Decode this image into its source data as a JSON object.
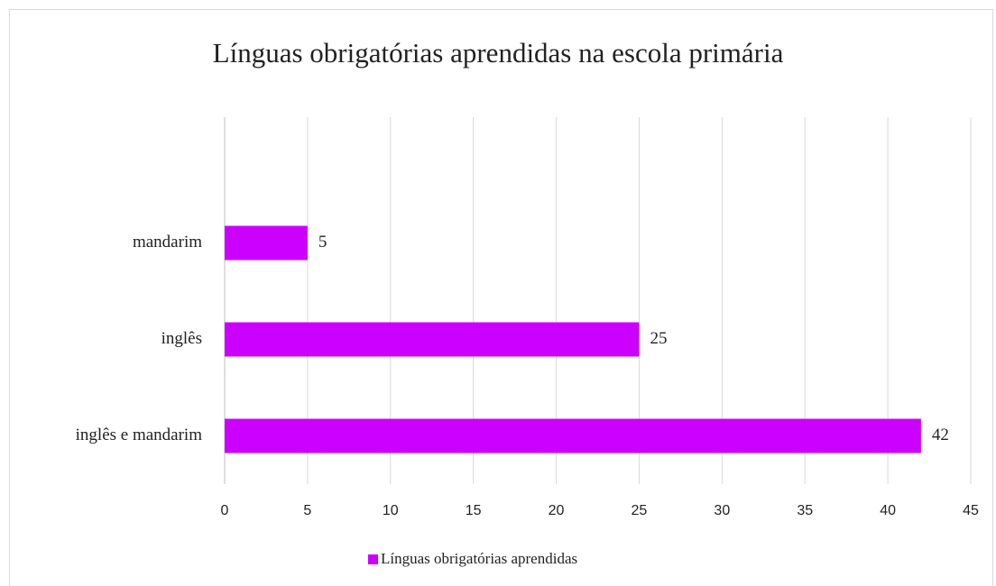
{
  "chart_data": {
    "type": "barh",
    "title": "Línguas obrigatórias aprendidas na escola primária",
    "categories": [
      "inglês e mandarim",
      "inglês",
      "mandarim",
      null
    ],
    "series": [
      {
        "name": "Línguas obrigatórias aprendidas",
        "color": "#cc00ff",
        "values": [
          42,
          25,
          5,
          null
        ]
      }
    ],
    "xlim": [
      0,
      45
    ],
    "xticks": [
      0,
      5,
      10,
      15,
      20,
      25,
      30,
      35,
      40,
      45
    ],
    "grid": true,
    "legend": "bottom"
  }
}
